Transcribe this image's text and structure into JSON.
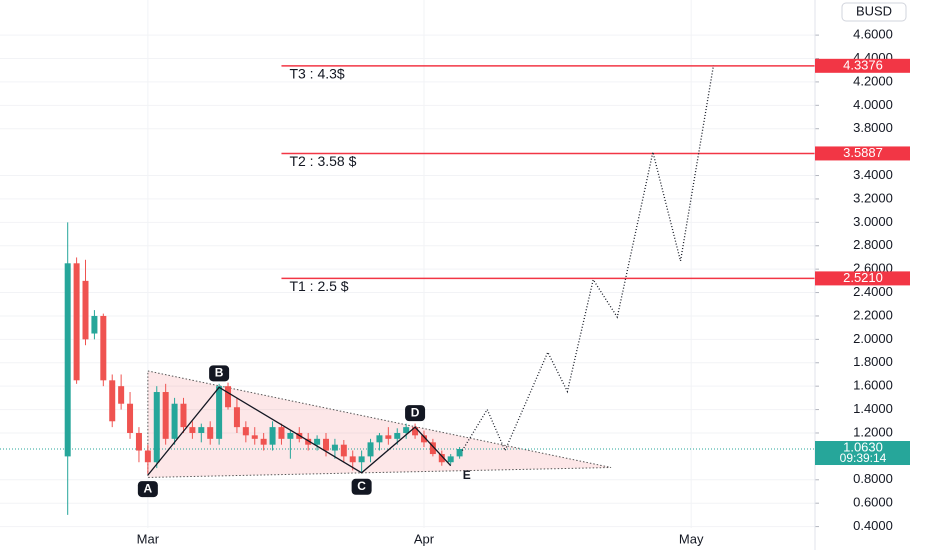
{
  "chart_data": {
    "type": "candlestick",
    "currency": "BUSD",
    "xlim": [
      -7.6,
      83.9
    ],
    "xticks": [
      {
        "value": 9,
        "label": "Mar"
      },
      {
        "value": 40,
        "label": "Apr"
      },
      {
        "value": 70,
        "label": "May"
      }
    ],
    "ylim": [
      0.2,
      4.9
    ],
    "yticks": [
      {
        "value": 4.6,
        "label": "4.6000"
      },
      {
        "value": 4.4,
        "label": "4.4000"
      },
      {
        "value": 4.2,
        "label": "4.2000"
      },
      {
        "value": 4.0,
        "label": "4.0000"
      },
      {
        "value": 3.8,
        "label": "3.8000"
      },
      {
        "value": 3.4,
        "label": "3.4000"
      },
      {
        "value": 3.2,
        "label": "3.2000"
      },
      {
        "value": 3.0,
        "label": "3.0000"
      },
      {
        "value": 2.8,
        "label": "2.8000"
      },
      {
        "value": 2.6,
        "label": "2.6000"
      },
      {
        "value": 2.4,
        "label": "2.4000"
      },
      {
        "value": 2.2,
        "label": "2.2000"
      },
      {
        "value": 2.0,
        "label": "2.0000"
      },
      {
        "value": 1.8,
        "label": "1.8000"
      },
      {
        "value": 1.6,
        "label": "1.6000"
      },
      {
        "value": 1.4,
        "label": "1.4000"
      },
      {
        "value": 1.2,
        "label": "1.2000"
      },
      {
        "value": 0.8,
        "label": "0.8000"
      },
      {
        "value": 0.6,
        "label": "0.6000"
      },
      {
        "value": 0.4,
        "label": "0.4000"
      }
    ],
    "grid": true,
    "up_color": "#26a69a",
    "down_color": "#ef5350",
    "x": [
      0,
      1,
      2,
      3,
      4,
      5,
      6,
      7,
      8,
      9,
      10,
      11,
      12,
      13,
      14,
      15,
      16,
      17,
      18,
      19,
      20,
      21,
      22,
      23,
      24,
      25,
      26,
      27,
      28,
      29,
      30,
      31,
      32,
      33,
      34,
      35,
      36,
      37,
      38,
      39,
      40,
      41,
      42,
      43,
      44
    ],
    "open": [
      1.0,
      2.65,
      2.5,
      2.05,
      2.2,
      1.65,
      1.6,
      1.45,
      1.2,
      1.05,
      0.95,
      1.55,
      1.15,
      1.45,
      1.25,
      1.2,
      1.25,
      1.15,
      1.6,
      1.42,
      1.25,
      1.18,
      1.15,
      1.1,
      1.25,
      1.15,
      1.2,
      1.15,
      1.1,
      1.15,
      1.05,
      1.1,
      1.0,
      0.95,
      1.0,
      1.12,
      1.18,
      1.15,
      1.2,
      1.25,
      1.18,
      1.12,
      1.02,
      0.95,
      1.0
    ],
    "high": [
      3.0,
      2.7,
      2.68,
      2.25,
      2.22,
      1.7,
      1.7,
      1.55,
      1.25,
      1.1,
      1.6,
      1.62,
      1.5,
      1.5,
      1.3,
      1.28,
      1.3,
      1.62,
      1.63,
      1.5,
      1.3,
      1.25,
      1.2,
      1.3,
      1.28,
      1.22,
      1.25,
      1.2,
      1.18,
      1.2,
      1.15,
      1.14,
      1.05,
      1.05,
      1.15,
      1.2,
      1.25,
      1.24,
      1.28,
      1.28,
      1.22,
      1.15,
      1.05,
      1.02,
      1.08
    ],
    "low": [
      0.5,
      1.62,
      1.95,
      2.0,
      1.6,
      1.25,
      1.4,
      1.15,
      0.95,
      0.85,
      0.9,
      1.1,
      1.1,
      1.2,
      1.15,
      1.12,
      1.1,
      1.1,
      1.4,
      1.2,
      1.12,
      1.1,
      1.05,
      1.05,
      1.1,
      0.98,
      1.12,
      1.05,
      1.05,
      1.0,
      0.98,
      0.95,
      0.88,
      0.86,
      0.95,
      1.05,
      1.1,
      1.1,
      1.15,
      1.15,
      1.08,
      1.0,
      0.92,
      0.93,
      0.98
    ],
    "close": [
      2.65,
      1.65,
      2.0,
      2.2,
      1.65,
      1.3,
      1.45,
      1.2,
      1.05,
      0.95,
      1.55,
      1.15,
      1.45,
      1.25,
      1.2,
      1.25,
      1.15,
      1.6,
      1.42,
      1.25,
      1.18,
      1.15,
      1.1,
      1.25,
      1.15,
      1.2,
      1.15,
      1.1,
      1.15,
      1.05,
      1.1,
      1.0,
      0.95,
      1.0,
      1.12,
      1.18,
      1.15,
      1.2,
      1.25,
      1.18,
      1.12,
      1.02,
      0.95,
      1.0,
      1.063
    ],
    "last_price": {
      "value": 1.063,
      "label": "1.0630",
      "countdown": "09:39:14"
    },
    "targets": [
      {
        "name": "T3 : 4.3$",
        "value": 4.3376,
        "label": "4.3376",
        "from": 24
      },
      {
        "name": "T2 : 3.58 $",
        "value": 3.5887,
        "label": "3.5887",
        "from": 24
      },
      {
        "name": "T1 : 2.5 $",
        "value": 2.521,
        "label": "2.5210",
        "from": 24
      }
    ],
    "pattern": {
      "labels": [
        "A",
        "B",
        "C",
        "D",
        "E"
      ],
      "x": [
        9,
        17,
        33,
        39,
        43
      ],
      "values": [
        0.84,
        1.59,
        0.86,
        1.25,
        0.92
      ]
    },
    "triangle": {
      "x": [
        9,
        61,
        9
      ],
      "values": [
        1.73,
        0.905,
        0.82
      ]
    },
    "projection": {
      "x": [
        44.3,
        47.1,
        49.1,
        53.9,
        56.1,
        59.0,
        61.7,
        65.7,
        68.8,
        72.5
      ],
      "values": [
        1.05,
        1.4,
        1.05,
        1.89,
        1.555,
        2.51,
        2.19,
        3.6,
        2.67,
        4.34
      ]
    }
  }
}
